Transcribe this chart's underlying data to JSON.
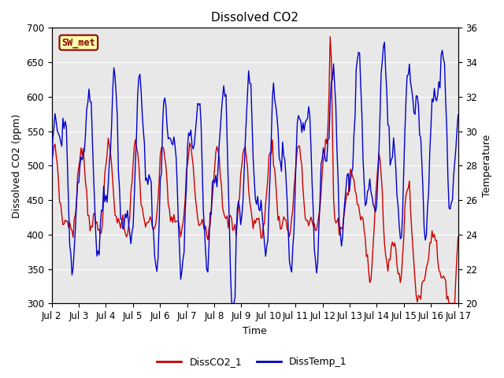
{
  "title": "Dissolved CO2",
  "xlabel": "Time",
  "ylabel_left": "Dissolved CO2 (ppm)",
  "ylabel_right": "Temperature",
  "ylim_left": [
    300,
    700
  ],
  "ylim_right": [
    20,
    36
  ],
  "bg_color": "#e8e8e8",
  "line_color_co2": "#cc0000",
  "line_color_temp": "#0000cc",
  "legend_labels": [
    "DissCO2_1",
    "DissTemp_1"
  ],
  "station_label": "SW_met",
  "xtick_labels": [
    "Jul 2",
    "Jul 3",
    "Jul 4",
    "Jul 5",
    "Jul 6",
    "Jul 7",
    "Jul 8",
    "Jul 9",
    "Jul 10",
    "Jul 11",
    "Jul 12",
    "Jul 13",
    "Jul 14",
    "Jul 15",
    "Jul 16",
    "Jul 17"
  ],
  "xtick_positions": [
    2,
    3,
    4,
    5,
    6,
    7,
    8,
    9,
    10,
    11,
    12,
    13,
    14,
    15,
    16,
    17
  ],
  "yticks_left": [
    300,
    350,
    400,
    450,
    500,
    550,
    600,
    650,
    700
  ],
  "yticks_right": [
    20,
    22,
    24,
    26,
    28,
    30,
    32,
    34,
    36
  ],
  "grid_color": "#ffffff",
  "title_fontsize": 11,
  "axis_label_fontsize": 9,
  "tick_fontsize": 8.5
}
